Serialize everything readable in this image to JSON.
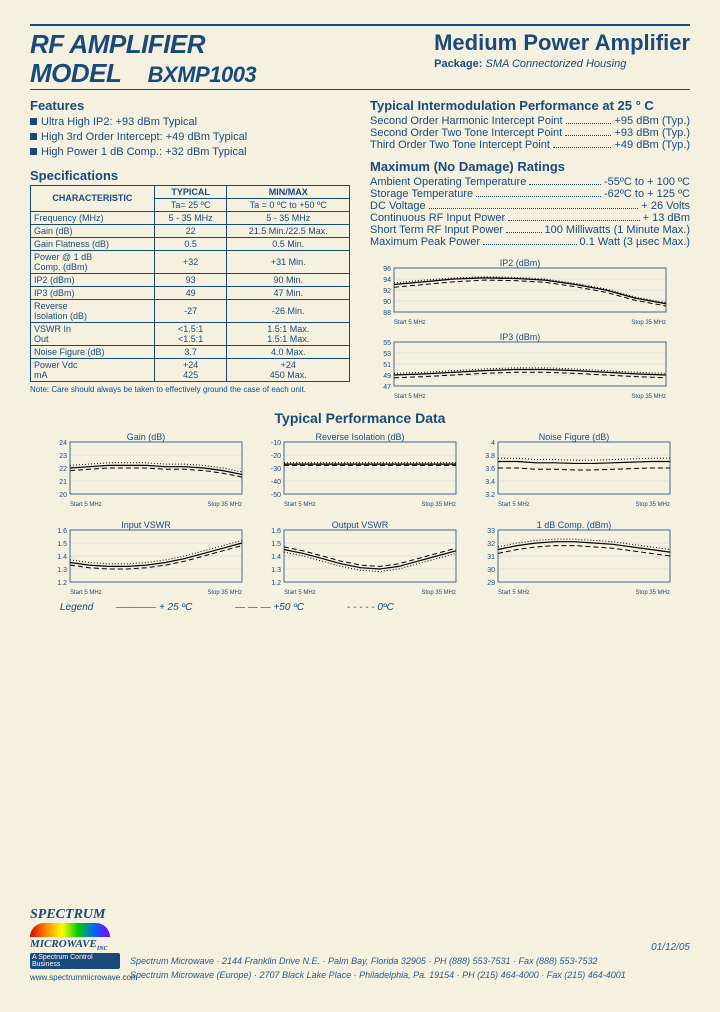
{
  "header": {
    "title_line1": "RF AMPLIFIER",
    "title_line2": "MODEL",
    "model": "BXMP1003",
    "subtitle": "Medium Power Amplifier",
    "package_label": "Package:",
    "package_value": "SMA Connectorized Housing"
  },
  "features": {
    "heading": "Features",
    "items": [
      "Ultra High IP2: +93 dBm Typical",
      "High 3rd Order Intercept: +49 dBm Typical",
      "High Power 1 dB Comp.: +32 dBm Typical"
    ]
  },
  "intermod": {
    "heading": "Typical Intermodulation Performance at 25 ° C",
    "rows": [
      {
        "label": "Second Order Harmonic Intercept Point",
        "value": "+95 dBm (Typ.)"
      },
      {
        "label": "Second Order Two Tone Intercept Point",
        "value": "+93 dBm (Typ.)"
      },
      {
        "label": "Third Order Two Tone Intercept Point",
        "value": "+49 dBm (Typ.)"
      }
    ]
  },
  "ratings": {
    "heading": "Maximum (No Damage) Ratings",
    "rows": [
      {
        "label": "Ambient Operating Temperature",
        "value": "-55ºC to + 100 ºC"
      },
      {
        "label": "Storage Temperature",
        "value": "-62ºC to + 125 ºC"
      },
      {
        "label": "DC Voltage",
        "value": "+ 26 Volts"
      },
      {
        "label": "Continuous RF Input Power",
        "value": "+ 13 dBm"
      },
      {
        "label": "Short Term RF Input Power",
        "value": "100 Milliwatts (1 Minute Max.)"
      },
      {
        "label": "Maximum Peak Power",
        "value": "0.1 Watt  (3 µsec Max.)"
      }
    ]
  },
  "spec": {
    "heading": "Specifications",
    "col_char": "CHARACTERISTIC",
    "col_typ": "TYPICAL",
    "col_typ_sub": "Ta= 25 ºC",
    "col_mm": "MIN/MAX",
    "col_mm_sub": "Ta = 0 ºC  to +50 ºC",
    "note": "Note: Care should always be taken to effectively ground the case of each unit.",
    "rows": [
      [
        "Frequency (MHz)",
        "5 - 35 MHz",
        "5 - 35 MHz"
      ],
      [
        "Gain (dB)",
        "22",
        "21.5 Min./22.5 Max."
      ],
      [
        "Gain Flatness (dB)",
        "0.5",
        "0.5 Min."
      ],
      [
        "Power @ 1 dB\nComp. (dBm)",
        "+32",
        "+31 Min."
      ],
      [
        "IP2 (dBm)",
        "93",
        "90 Min."
      ],
      [
        "IP3 (dBm)",
        "49",
        "47  Min."
      ],
      [
        "Reverse\nIsolation (dB)",
        "-27",
        "-26 Min."
      ],
      [
        "VSWR       In\n                 Out",
        "<1.5:1\n<1.5:1",
        "1.5:1 Max.\n1.5:1 Max."
      ],
      [
        "Noise Figure (dB)",
        "3.7",
        "4.0 Max."
      ],
      [
        "Power       Vdc\n                 mA",
        "+24\n425",
        "+24\n450 Max."
      ]
    ]
  },
  "charts": {
    "perf_heading": "Typical Performance Data",
    "start_label": "Start 5 MHz",
    "stop_label": "Stop 35 MHz",
    "colors": {
      "axis": "#1a4a7a",
      "grid": "#c4d0dc",
      "line_solid": "#000000",
      "line_dash": "#000000",
      "line_dot": "#000000"
    },
    "top": [
      {
        "title": "IP2 (dBm)",
        "ymin": 88,
        "ymax": 96,
        "ystep": 2,
        "solid": [
          93,
          93.5,
          94,
          94.2,
          94.1,
          93.8,
          93,
          92,
          90.5,
          89.5
        ],
        "dash": [
          92.5,
          93,
          93.5,
          93.8,
          93.7,
          93.4,
          92.6,
          91.6,
          90.1,
          89.1
        ],
        "dot": [
          93.3,
          93.8,
          94.2,
          94.4,
          94.3,
          94,
          93.2,
          92.2,
          90.7,
          89.7
        ]
      },
      {
        "title": "IP3 (dBm)",
        "ymin": 47,
        "ymax": 55,
        "ystep": 2,
        "solid": [
          49,
          49.2,
          49.5,
          49.8,
          50,
          50,
          49.8,
          49.5,
          49.2,
          49
        ],
        "dash": [
          48.5,
          48.7,
          49,
          49.3,
          49.5,
          49.5,
          49.3,
          49,
          48.7,
          48.5
        ],
        "dot": [
          49.3,
          49.5,
          49.8,
          50.1,
          50.3,
          50.3,
          50.1,
          49.8,
          49.5,
          49.3
        ]
      }
    ],
    "grid": [
      {
        "title": "Gain (dB)",
        "ymin": 20,
        "ymax": 24,
        "ystep": 1,
        "solid": [
          22,
          22.1,
          22.2,
          22.2,
          22.2,
          22.1,
          22.1,
          22,
          21.8,
          21.5
        ],
        "dash": [
          21.8,
          21.9,
          22,
          22,
          22,
          21.9,
          21.9,
          21.8,
          21.6,
          21.3
        ],
        "dot": [
          22.2,
          22.3,
          22.4,
          22.4,
          22.4,
          22.3,
          22.3,
          22.2,
          22,
          21.7
        ]
      },
      {
        "title": "Reverse Isolation (dB)",
        "ymin": -50,
        "ymax": -10,
        "ystep": 10,
        "solid": [
          -27,
          -27,
          -27,
          -27,
          -27,
          -27,
          -27,
          -27,
          -27,
          -27
        ],
        "dash": [
          -28,
          -28,
          -28,
          -28,
          -28,
          -28,
          -28,
          -28,
          -28,
          -28
        ],
        "dot": [
          -26,
          -26,
          -26,
          -26,
          -26,
          -26,
          -26,
          -26,
          -26,
          -26
        ]
      },
      {
        "title": "Noise Figure (dB)",
        "ymin": 3.2,
        "ymax": 4.0,
        "ystep": 0.2,
        "solid": [
          3.7,
          3.7,
          3.68,
          3.68,
          3.67,
          3.67,
          3.68,
          3.69,
          3.7,
          3.7
        ],
        "dash": [
          3.6,
          3.6,
          3.58,
          3.58,
          3.57,
          3.57,
          3.58,
          3.59,
          3.6,
          3.6
        ],
        "dot": [
          3.75,
          3.75,
          3.73,
          3.73,
          3.72,
          3.72,
          3.73,
          3.74,
          3.75,
          3.75
        ]
      },
      {
        "title": "Input VSWR",
        "ymin": 1.2,
        "ymax": 1.6,
        "ystep": 0.1,
        "solid": [
          1.35,
          1.33,
          1.32,
          1.32,
          1.33,
          1.35,
          1.38,
          1.42,
          1.46,
          1.5
        ],
        "dash": [
          1.33,
          1.31,
          1.3,
          1.3,
          1.31,
          1.33,
          1.36,
          1.4,
          1.44,
          1.48
        ],
        "dot": [
          1.37,
          1.35,
          1.34,
          1.34,
          1.35,
          1.37,
          1.4,
          1.44,
          1.48,
          1.52
        ]
      },
      {
        "title": "Output VSWR",
        "ymin": 1.2,
        "ymax": 1.6,
        "ystep": 0.1,
        "solid": [
          1.45,
          1.42,
          1.38,
          1.34,
          1.31,
          1.3,
          1.32,
          1.36,
          1.4,
          1.44
        ],
        "dash": [
          1.47,
          1.44,
          1.4,
          1.36,
          1.33,
          1.32,
          1.34,
          1.38,
          1.42,
          1.46
        ],
        "dot": [
          1.43,
          1.4,
          1.36,
          1.32,
          1.29,
          1.28,
          1.3,
          1.34,
          1.38,
          1.42
        ]
      },
      {
        "title": "1 dB Comp. (dBm)",
        "ymin": 29,
        "ymax": 33,
        "ystep": 1,
        "solid": [
          31.5,
          31.8,
          32,
          32.1,
          32.1,
          32,
          31.9,
          31.7,
          31.5,
          31.3
        ],
        "dash": [
          31.2,
          31.5,
          31.7,
          31.8,
          31.8,
          31.7,
          31.6,
          31.4,
          31.2,
          31.0
        ],
        "dot": [
          31.7,
          32,
          32.2,
          32.3,
          32.3,
          32.2,
          32.1,
          31.9,
          31.7,
          31.5
        ]
      }
    ]
  },
  "legend": {
    "label": "Legend",
    "items": [
      "+ 25 ºC",
      "+50 ºC",
      "0ºC"
    ]
  },
  "footer": {
    "logo_top": "SPECTRUM",
    "logo_bottom": "MICROWAVE",
    "logo_sub": "A Spectrum Control Business",
    "url": "www.spectrummicrowave.com",
    "date": "01/12/05",
    "addr1": "Spectrum Microwave · 2144 Franklin Drive N.E. · Palm Bay, Florida 32905 · PH (888) 553-7531 · Fax (888) 553-7532",
    "addr2": "Spectrum Microwave (Europe) · 2707 Black Lake Place · Philadelphia, Pa. 19154 · PH (215) 464-4000 · Fax (215) 464-4001"
  }
}
